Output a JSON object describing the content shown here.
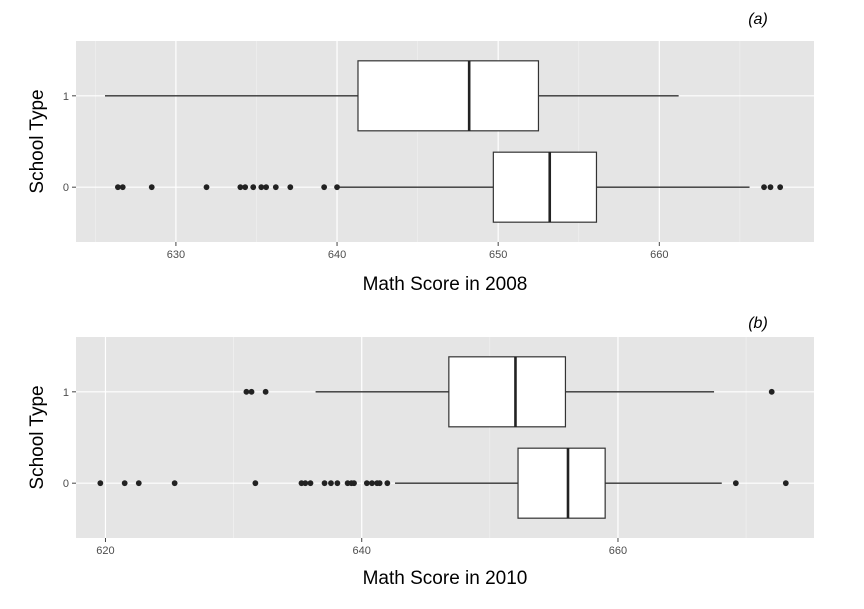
{
  "chart_data": [
    {
      "type": "boxplot",
      "panel_label": "(a)",
      "xlabel": "Math Score in 2008",
      "ylabel": "School Type",
      "xlim": [
        623.8,
        669.6
      ],
      "xticks": [
        630,
        640,
        650,
        660
      ],
      "ylim": [
        -0.6,
        1.6
      ],
      "categories": [
        "0",
        "1"
      ],
      "orientation": "horizontal",
      "grid": true,
      "series": [
        {
          "category": "1",
          "whisker_low": 625.6,
          "q1": 641.3,
          "median": 648.2,
          "q3": 652.5,
          "whisker_high": 661.2,
          "outliers": []
        },
        {
          "category": "0",
          "whisker_low": 640.1,
          "q1": 649.7,
          "median": 653.2,
          "q3": 656.1,
          "whisker_high": 665.6,
          "outliers": [
            626.4,
            626.7,
            628.5,
            631.9,
            634.0,
            634.3,
            634.8,
            635.3,
            635.6,
            636.2,
            637.1,
            639.2,
            640.0,
            666.5,
            666.9,
            667.5
          ]
        }
      ]
    },
    {
      "type": "boxplot",
      "panel_label": "(b)",
      "xlabel": "Math Score in 2010",
      "ylabel": "School Type",
      "xlim": [
        617.7,
        675.3
      ],
      "xticks": [
        620,
        640,
        660
      ],
      "ylim": [
        -0.6,
        1.6
      ],
      "categories": [
        "0",
        "1"
      ],
      "orientation": "horizontal",
      "grid": true,
      "series": [
        {
          "category": "1",
          "whisker_low": 636.4,
          "q1": 646.8,
          "median": 652.0,
          "q3": 655.9,
          "whisker_high": 667.5,
          "outliers": [
            631.0,
            631.4,
            632.5,
            672.0
          ]
        },
        {
          "category": "0",
          "whisker_low": 642.6,
          "q1": 652.2,
          "median": 656.1,
          "q3": 659.0,
          "whisker_high": 668.1,
          "outliers": [
            619.6,
            621.5,
            622.6,
            625.4,
            631.7,
            635.3,
            635.6,
            636.0,
            637.1,
            637.6,
            638.1,
            638.9,
            639.2,
            639.4,
            640.4,
            640.8,
            641.2,
            641.4,
            642.0,
            669.2,
            673.1
          ]
        }
      ]
    }
  ]
}
